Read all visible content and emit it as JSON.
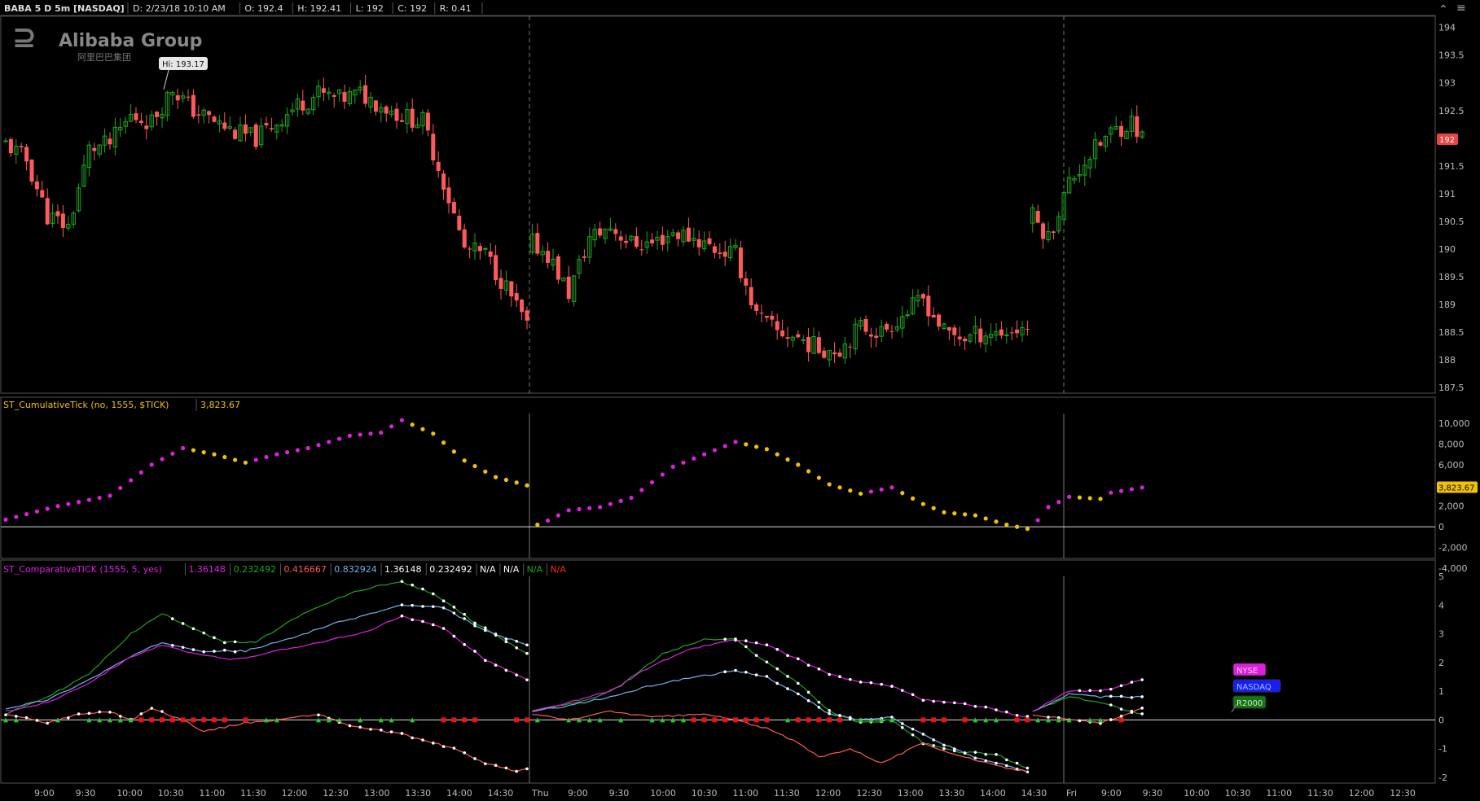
{
  "header": {
    "symbol": "BABA 5 D 5m [NASDAQ]",
    "date": "D: 2/23/18 10:10 AM",
    "open": "O: 192.4",
    "high": "H: 192.41",
    "low": "L: 192",
    "close": "C: 192",
    "range": "R: 0.41"
  },
  "logo": {
    "text": "Alibaba Group",
    "sub": "阿里巴巴集团"
  },
  "colors": {
    "up": "#1fa51f",
    "down": "#ff5a5a",
    "magenta": "#e01ee0",
    "yellow": "#f2c200",
    "bg": "#000000"
  },
  "price_panel": {
    "hi_label": "Hi: 193.17",
    "current_price": "192",
    "y_ticks": [
      "194",
      "193.5",
      "193",
      "192.5",
      "192",
      "191.5",
      "191",
      "190.5",
      "190",
      "189.5",
      "189",
      "188.5",
      "188",
      "187.5"
    ]
  },
  "tick_panel": {
    "label": "ST_CumulativeTick (no, 1555, $TICK)",
    "value": "3,823.67",
    "y_ticks": [
      "10,000",
      "8,000",
      "6,000",
      "4,000",
      "2,000",
      "0",
      "-2,000",
      "-4,000"
    ],
    "current": "3,823.67"
  },
  "comp_panel": {
    "label": "ST_ComparativeTICK (1555, 5, yes)",
    "values": [
      {
        "text": "1.36148",
        "color": "#e01ee0"
      },
      {
        "text": "0.232492",
        "color": "#1fa51f"
      },
      {
        "text": "0.416667",
        "color": "#ff5a5a"
      },
      {
        "text": "0.832924",
        "color": "#6fb3e8"
      },
      {
        "text": "1.36148",
        "color": "#ffffff"
      },
      {
        "text": "0.232492",
        "color": "#ffffff"
      },
      {
        "text": "N/A",
        "color": "#ffffff"
      },
      {
        "text": "N/A",
        "color": "#ffffff"
      },
      {
        "text": "N/A",
        "color": "#1fa51f"
      },
      {
        "text": "N/A",
        "color": "#ff2222"
      }
    ],
    "y_ticks": [
      "5",
      "4",
      "3",
      "2",
      "1",
      "0",
      "-1",
      "-2"
    ],
    "legend": [
      {
        "text": "NYSE",
        "color": "#e01ee0"
      },
      {
        "text": "NASDAQ",
        "color": "#1a1aff"
      },
      {
        "text": "R2000",
        "color": "#117711"
      }
    ]
  },
  "x_axis": {
    "labels": [
      "9:00",
      "9:30",
      "10:00",
      "10:30",
      "11:00",
      "11:30",
      "12:00",
      "12:30",
      "13:00",
      "13:30",
      "14:00",
      "14:30",
      "Thu",
      "9:00",
      "9:30",
      "10:00",
      "10:30",
      "11:00",
      "11:30",
      "12:00",
      "12:30",
      "13:00",
      "13:30",
      "14:00",
      "14:30",
      "Fri",
      "9:00",
      "9:30",
      "10:00",
      "10:30",
      "11:00",
      "11:30",
      "12:00",
      "12:30"
    ]
  },
  "chart_data": {
    "type": "candlestick",
    "title": "BABA 5 D 5m [NASDAQ]",
    "ylim": [
      187.4,
      194.2
    ],
    "day_breaks": [
      "Thu",
      "Fri"
    ],
    "close_path": [
      [
        0,
        191.9
      ],
      [
        4,
        191.6
      ],
      [
        8,
        190.6
      ],
      [
        12,
        190.4
      ],
      [
        16,
        191.8
      ],
      [
        20,
        191.9
      ],
      [
        24,
        192.4
      ],
      [
        28,
        192.3
      ],
      [
        32,
        192.9
      ],
      [
        36,
        192.5
      ],
      [
        40,
        192.3
      ],
      [
        44,
        192.1
      ],
      [
        48,
        192.0
      ],
      [
        52,
        192.3
      ],
      [
        56,
        192.6
      ],
      [
        60,
        192.8
      ],
      [
        64,
        192.7
      ],
      [
        68,
        192.8
      ],
      [
        72,
        192.6
      ],
      [
        76,
        192.4
      ],
      [
        80,
        192.3
      ],
      [
        84,
        191.2
      ],
      [
        88,
        190.0
      ],
      [
        92,
        189.9
      ],
      [
        96,
        189.3
      ],
      [
        100,
        188.6
      ],
      [
        101,
        190.1
      ],
      [
        104,
        189.9
      ],
      [
        108,
        189.2
      ],
      [
        112,
        190.2
      ],
      [
        116,
        190.4
      ],
      [
        120,
        190.1
      ],
      [
        124,
        190.1
      ],
      [
        128,
        190.3
      ],
      [
        132,
        190.2
      ],
      [
        136,
        190.0
      ],
      [
        140,
        189.9
      ],
      [
        144,
        188.8
      ],
      [
        148,
        188.5
      ],
      [
        152,
        188.4
      ],
      [
        156,
        188.2
      ],
      [
        160,
        188.2
      ],
      [
        164,
        188.6
      ],
      [
        168,
        188.5
      ],
      [
        172,
        188.8
      ],
      [
        176,
        189.1
      ],
      [
        180,
        188.5
      ],
      [
        184,
        188.4
      ],
      [
        188,
        188.5
      ],
      [
        192,
        188.5
      ],
      [
        196,
        188.6
      ],
      [
        197,
        190.6
      ],
      [
        200,
        190.2
      ],
      [
        204,
        191.2
      ],
      [
        208,
        191.7
      ],
      [
        212,
        192.1
      ],
      [
        216,
        192.3
      ],
      [
        218,
        192.0
      ]
    ]
  }
}
